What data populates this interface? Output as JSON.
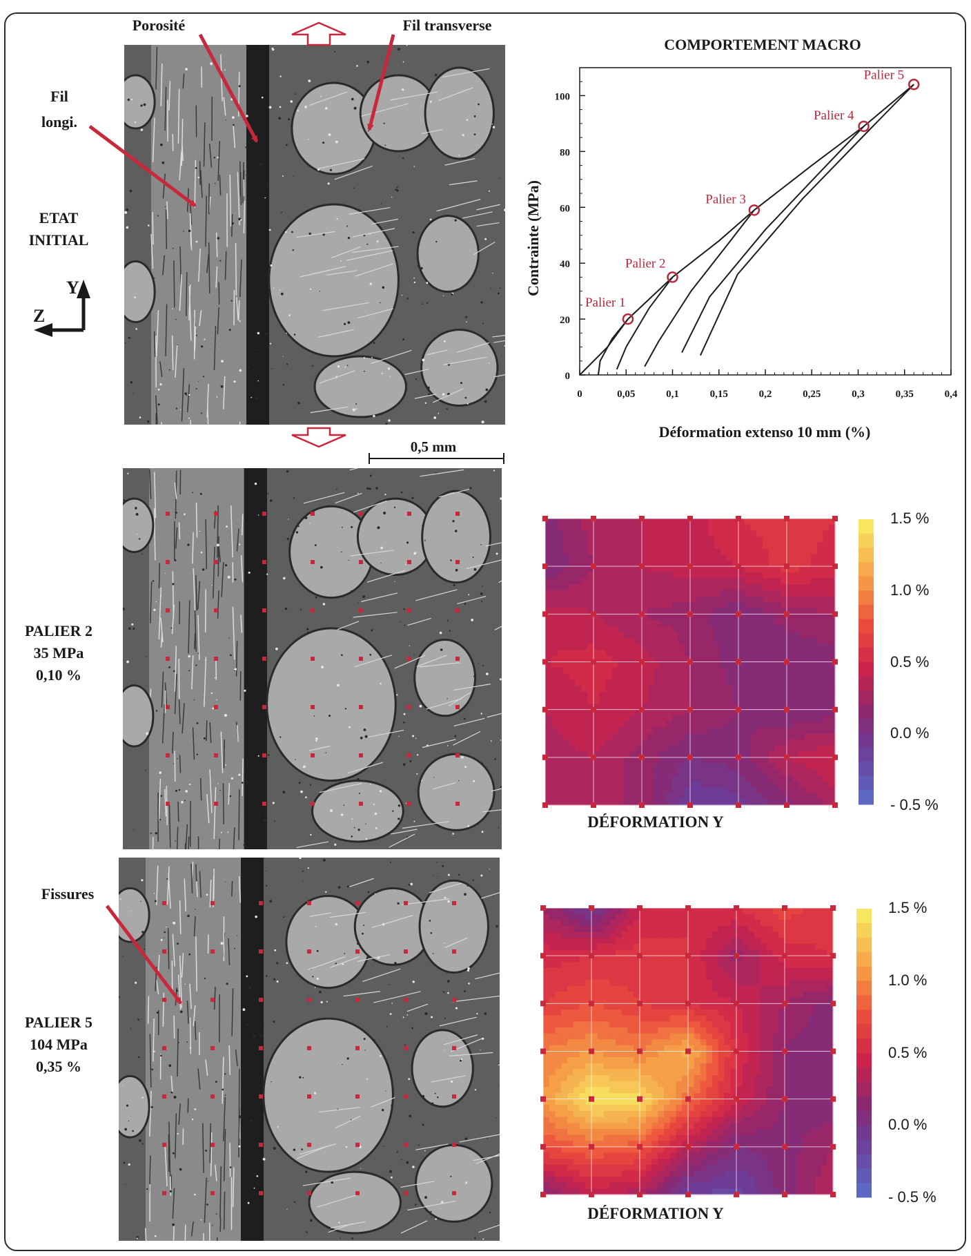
{
  "annotations": {
    "porosite": "Porosité",
    "fil_transverse": "Fil transverse",
    "fil_longi_1": "Fil",
    "fil_longi_2": "longi.",
    "fissures": "Fissures",
    "scale": "0,5 mm"
  },
  "axes_icon": {
    "y": "Y",
    "z": "Z"
  },
  "states": [
    {
      "line1": "ETAT",
      "line2": "INITIAL",
      "line3": ""
    },
    {
      "line1": "PALIER 2",
      "line2": "35 MPa",
      "line3": "0,10 %"
    },
    {
      "line1": "PALIER 5",
      "line2": "104 MPa",
      "line3": "0,35 %"
    }
  ],
  "heatmap_caption": "DÉFORMATION Y",
  "colorbar_labels": [
    "1.5 %",
    "1.0 %",
    "0.5 %",
    "0.0 %",
    "- 0.5 %"
  ],
  "chart_data": {
    "type": "line",
    "title": "COMPORTEMENT MACRO",
    "xlabel": "Déformation extenso 10 mm (%)",
    "ylabel": "Contrainte (MPa)",
    "xlim": [
      0,
      0.4
    ],
    "ylim": [
      0,
      110
    ],
    "x_ticks": [
      "0",
      "0,05",
      "0,1",
      "0,15",
      "0,2",
      "0,25",
      "0,3",
      "0,35",
      "0,4"
    ],
    "y_ticks": [
      "0",
      "20",
      "40",
      "60",
      "80",
      "100"
    ],
    "paliers": [
      {
        "name": "Palier 1",
        "x": 0.052,
        "y": 20
      },
      {
        "name": "Palier 2",
        "x": 0.1,
        "y": 35
      },
      {
        "name": "Palier 3",
        "x": 0.188,
        "y": 59
      },
      {
        "name": "Palier 4",
        "x": 0.306,
        "y": 89
      },
      {
        "name": "Palier 5",
        "x": 0.36,
        "y": 104
      }
    ],
    "series": [
      {
        "values": [
          [
            0,
            0
          ],
          [
            0.03,
            10
          ],
          [
            0.052,
            20
          ],
          [
            0.1,
            35
          ],
          [
            0.15,
            48
          ],
          [
            0.188,
            59
          ],
          [
            0.25,
            75
          ],
          [
            0.306,
            89
          ],
          [
            0.36,
            104
          ]
        ]
      },
      {
        "values": [
          [
            0.052,
            20
          ],
          [
            0.035,
            13
          ],
          [
            0.022,
            5
          ],
          [
            0.02,
            0
          ]
        ]
      },
      {
        "values": [
          [
            0.1,
            35
          ],
          [
            0.075,
            24
          ],
          [
            0.05,
            10
          ],
          [
            0.04,
            2
          ]
        ]
      },
      {
        "values": [
          [
            0.188,
            59
          ],
          [
            0.16,
            47
          ],
          [
            0.12,
            30
          ],
          [
            0.085,
            12
          ],
          [
            0.07,
            3
          ]
        ]
      },
      {
        "values": [
          [
            0.306,
            89
          ],
          [
            0.26,
            73
          ],
          [
            0.2,
            52
          ],
          [
            0.14,
            28
          ],
          [
            0.11,
            8
          ]
        ]
      },
      {
        "values": [
          [
            0.36,
            104
          ],
          [
            0.31,
            87
          ],
          [
            0.24,
            63
          ],
          [
            0.17,
            36
          ],
          [
            0.13,
            7
          ]
        ]
      }
    ]
  },
  "heatmaps": [
    {
      "name": "palier-2",
      "values": [
        [
          0.1,
          0.3,
          0.35,
          0.4,
          0.55,
          0.6,
          0.55
        ],
        [
          0.05,
          0.25,
          0.35,
          0.4,
          0.45,
          0.6,
          0.5
        ],
        [
          0.4,
          0.35,
          0.25,
          0.2,
          0.05,
          0.2,
          0.25
        ],
        [
          0.45,
          0.5,
          0.4,
          0.25,
          0.1,
          0.05,
          0.1
        ],
        [
          0.35,
          0.45,
          0.35,
          0.25,
          0.15,
          0.05,
          0.1
        ],
        [
          0.3,
          0.35,
          0.2,
          0.05,
          0.1,
          0.35,
          0.45
        ],
        [
          0.25,
          0.25,
          0.25,
          -0.15,
          -0.1,
          0.1,
          0.3
        ]
      ]
    },
    {
      "name": "palier-5",
      "values": [
        [
          0.25,
          -0.1,
          0.45,
          0.55,
          0.55,
          0.7,
          0.6
        ],
        [
          0.5,
          0.55,
          0.6,
          0.55,
          0.2,
          0.5,
          0.55
        ],
        [
          0.65,
          0.75,
          0.65,
          0.55,
          0.45,
          0.25,
          0.1
        ],
        [
          0.95,
          1.05,
          0.95,
          1.2,
          0.55,
          0.15,
          0.05
        ],
        [
          1.05,
          1.45,
          1.4,
          0.9,
          0.45,
          0.15,
          0.05
        ],
        [
          0.75,
          0.85,
          0.8,
          0.35,
          0.05,
          0.1,
          0.25
        ],
        [
          0.1,
          0.4,
          0.3,
          -0.15,
          -0.2,
          0.1,
          0.35
        ]
      ]
    }
  ],
  "colors": {
    "arrow": "#c8283c",
    "curve": "#1c1c1c",
    "palier_text": "#b8283c"
  }
}
